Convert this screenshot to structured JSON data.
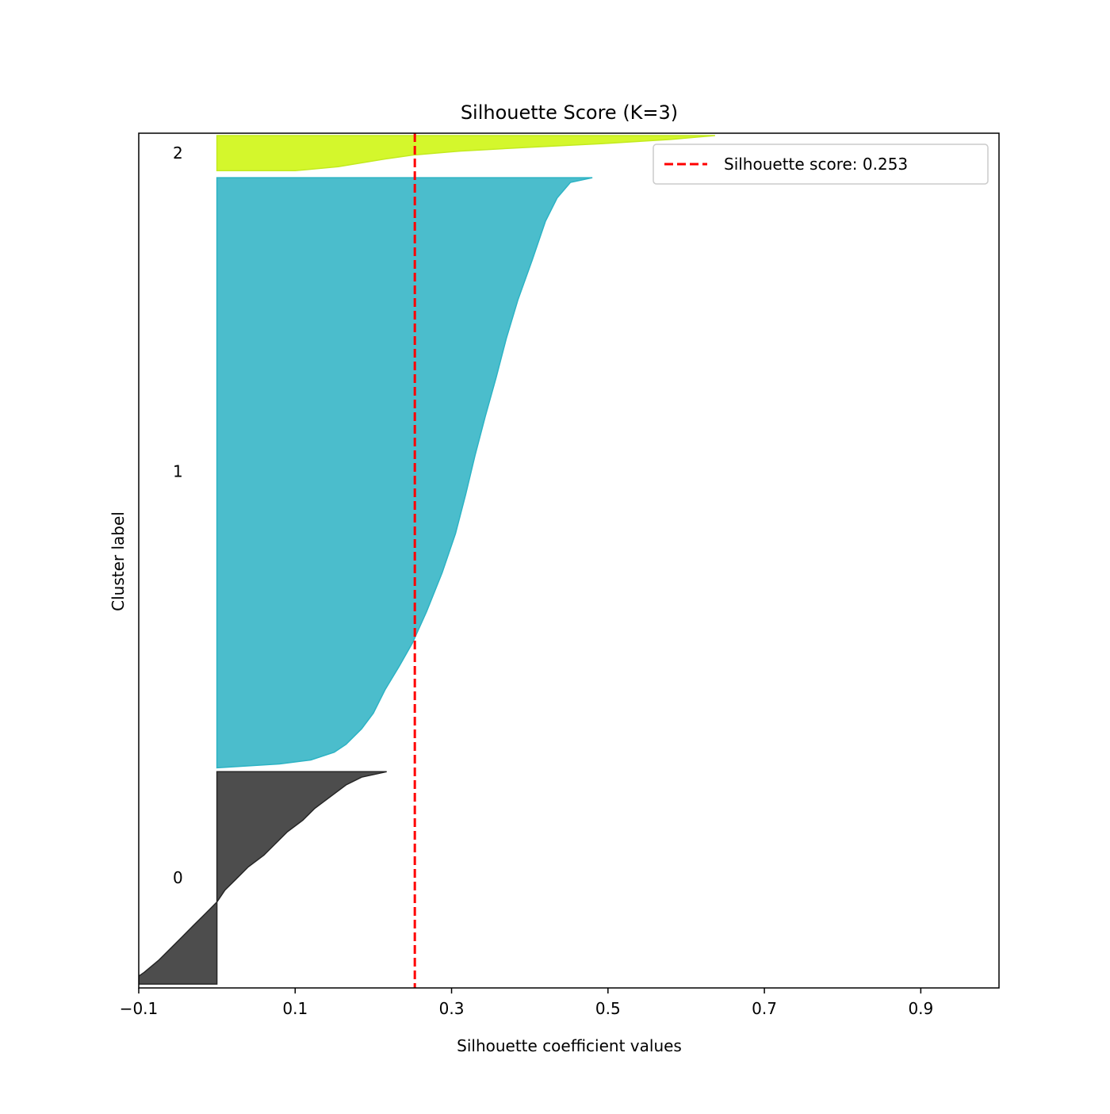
{
  "chart_data": {
    "type": "area",
    "title": "Silhouette Score (K=3)",
    "xlabel": "Silhouette coefficient values",
    "ylabel": "Cluster label",
    "xlim": [
      -0.1,
      1.0
    ],
    "ylim": [
      0,
      1095
    ],
    "x_ticks": [
      "−0.1",
      "0.1",
      "0.3",
      "0.5",
      "0.7",
      "0.9"
    ],
    "x_tick_values": [
      -0.1,
      0.1,
      0.3,
      0.5,
      0.7,
      0.9
    ],
    "grid": false,
    "legend_position": "top-right",
    "average_score": {
      "value": 0.253,
      "label": "Silhouette score: 0.253",
      "color": "#ff0000",
      "style": "dashed"
    },
    "clusters": [
      {
        "label": "0",
        "y_lower": 5,
        "y_upper": 277,
        "color": "#4d4d4d",
        "edge_color": "#262626",
        "profile": [
          [
            0,
            -0.105
          ],
          [
            10,
            -0.1
          ],
          [
            15,
            -0.093
          ],
          [
            30,
            -0.075
          ],
          [
            45,
            -0.06
          ],
          [
            60,
            -0.045
          ],
          [
            75,
            -0.03
          ],
          [
            90,
            -0.015
          ],
          [
            105,
            0.0
          ],
          [
            120,
            0.01
          ],
          [
            135,
            0.025
          ],
          [
            150,
            0.04
          ],
          [
            165,
            0.06
          ],
          [
            180,
            0.075
          ],
          [
            195,
            0.09
          ],
          [
            210,
            0.11
          ],
          [
            225,
            0.125
          ],
          [
            240,
            0.145
          ],
          [
            255,
            0.165
          ],
          [
            265,
            0.185
          ],
          [
            272,
            0.217
          ]
        ]
      },
      {
        "label": "1",
        "y_lower": 282,
        "y_upper": 1042,
        "color": "#4bbdcc",
        "edge_color": "#2db3c4",
        "profile": [
          [
            0,
            0.0
          ],
          [
            5,
            0.08
          ],
          [
            10,
            0.12
          ],
          [
            20,
            0.15
          ],
          [
            30,
            0.165
          ],
          [
            50,
            0.185
          ],
          [
            70,
            0.2
          ],
          [
            100,
            0.215
          ],
          [
            130,
            0.233
          ],
          [
            160,
            0.25
          ],
          [
            200,
            0.268
          ],
          [
            250,
            0.288
          ],
          [
            300,
            0.305
          ],
          [
            350,
            0.318
          ],
          [
            400,
            0.33
          ],
          [
            450,
            0.343
          ],
          [
            500,
            0.357
          ],
          [
            550,
            0.37
          ],
          [
            600,
            0.385
          ],
          [
            650,
            0.403
          ],
          [
            700,
            0.42
          ],
          [
            730,
            0.435
          ],
          [
            750,
            0.452
          ],
          [
            756,
            0.48
          ]
        ]
      },
      {
        "label": "2",
        "y_lower": 1047,
        "y_upper": 1092,
        "color": "#d4f72c",
        "edge_color": "#c3ea1f",
        "profile": [
          [
            0,
            0.1
          ],
          [
            5,
            0.155
          ],
          [
            10,
            0.185
          ],
          [
            15,
            0.215
          ],
          [
            20,
            0.25
          ],
          [
            25,
            0.31
          ],
          [
            30,
            0.4
          ],
          [
            35,
            0.5
          ],
          [
            40,
            0.58
          ],
          [
            45,
            0.637
          ]
        ]
      }
    ]
  }
}
